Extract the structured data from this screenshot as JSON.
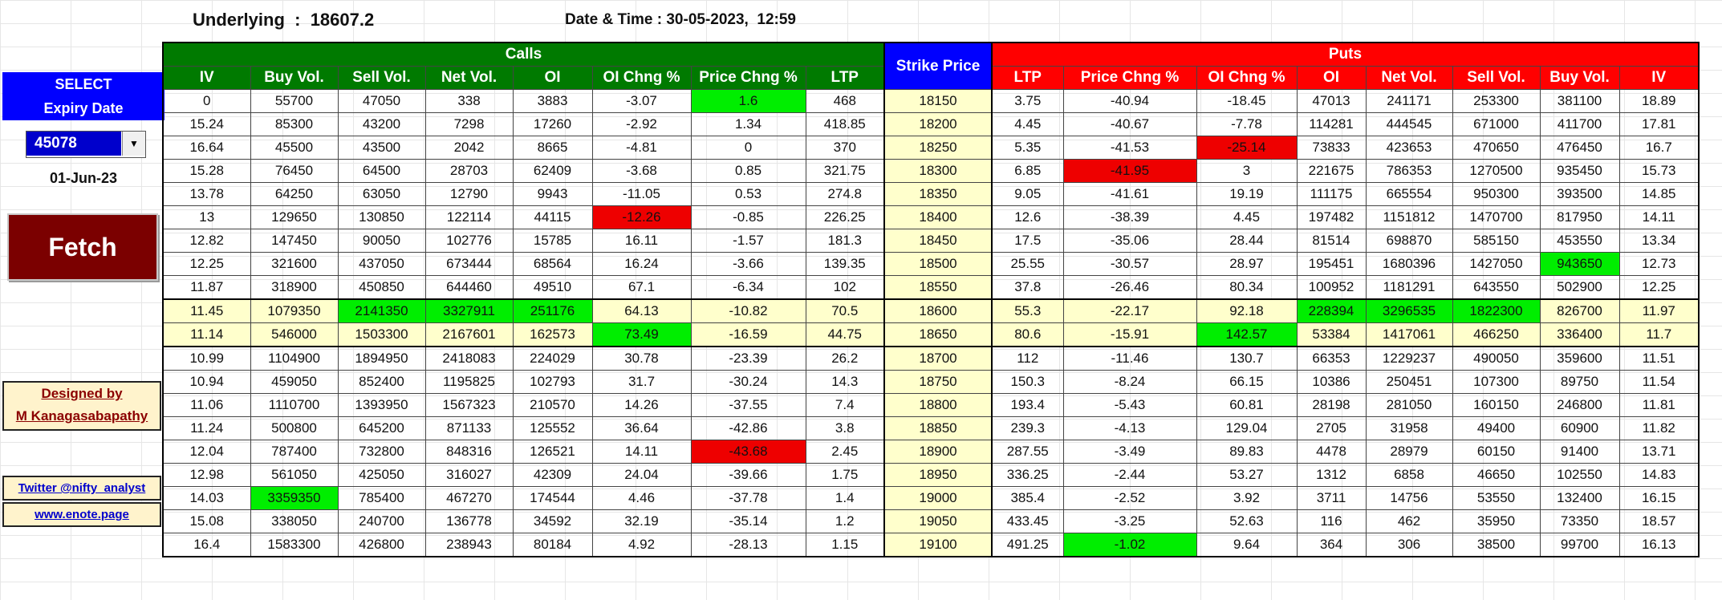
{
  "header": {
    "underlying_label": "Underlying  :",
    "underlying_value": "18607.2",
    "datetime_label": "Date & Time :",
    "datetime_value": "30-05-2023,  12:59"
  },
  "left_panel": {
    "select_line1": "SELECT",
    "select_line2": "Expiry Date",
    "expiry_value": "45078",
    "expiry_date": "01-Jun-23",
    "fetch_label": "Fetch",
    "designed_by": "Designed by",
    "author": "M Kanagasabapathy",
    "twitter": "Twitter @nifty_analyst",
    "website": "www.enote.page"
  },
  "colors": {
    "calls_header": "#007a00",
    "puts_header": "#ff0000",
    "strike_header": "#0000ff",
    "highlight_green": "#00ee00",
    "highlight_red": "#ee0000",
    "atm_row": "#ffffcc"
  },
  "table": {
    "calls_title": "Calls",
    "puts_title": "Puts",
    "strike_title": "Strike Price",
    "call_columns": [
      "IV",
      "Buy Vol.",
      "Sell Vol.",
      "Net Vol.",
      "OI",
      "OI Chng %",
      "Price Chng %",
      "LTP"
    ],
    "put_columns": [
      "LTP",
      "Price Chng %",
      "OI Chng %",
      "OI",
      "Net Vol.",
      "Sell Vol.",
      "Buy Vol.",
      "IV"
    ],
    "rows": [
      {
        "calls": [
          "0",
          "55700",
          "47050",
          "338",
          "3883",
          "-3.07",
          "1.6",
          "468"
        ],
        "strike": "18150",
        "puts": [
          "3.75",
          "-40.94",
          "-18.45",
          "47013",
          "241171",
          "253300",
          "381100",
          "18.89"
        ]
      },
      {
        "calls": [
          "15.24",
          "85300",
          "43200",
          "7298",
          "17260",
          "-2.92",
          "1.34",
          "418.85"
        ],
        "strike": "18200",
        "puts": [
          "4.45",
          "-40.67",
          "-7.78",
          "114281",
          "444545",
          "671000",
          "411700",
          "17.81"
        ]
      },
      {
        "calls": [
          "16.64",
          "45500",
          "43500",
          "2042",
          "8665",
          "-4.81",
          "0",
          "370"
        ],
        "strike": "18250",
        "puts": [
          "5.35",
          "-41.53",
          "-25.14",
          "73833",
          "423653",
          "470650",
          "476450",
          "16.7"
        ]
      },
      {
        "calls": [
          "15.28",
          "76450",
          "64500",
          "28703",
          "62409",
          "-3.68",
          "0.85",
          "321.75"
        ],
        "strike": "18300",
        "puts": [
          "6.85",
          "-41.95",
          "3",
          "221675",
          "786353",
          "1270500",
          "935450",
          "15.73"
        ]
      },
      {
        "calls": [
          "13.78",
          "64250",
          "63050",
          "12790",
          "9943",
          "-11.05",
          "0.53",
          "274.8"
        ],
        "strike": "18350",
        "puts": [
          "9.05",
          "-41.61",
          "19.19",
          "111175",
          "665554",
          "950300",
          "393500",
          "14.85"
        ]
      },
      {
        "calls": [
          "13",
          "129650",
          "130850",
          "122114",
          "44115",
          "-12.26",
          "-0.85",
          "226.25"
        ],
        "strike": "18400",
        "puts": [
          "12.6",
          "-38.39",
          "4.45",
          "197482",
          "1151812",
          "1470700",
          "817950",
          "14.11"
        ]
      },
      {
        "calls": [
          "12.82",
          "147450",
          "90050",
          "102776",
          "15785",
          "16.11",
          "-1.57",
          "181.3"
        ],
        "strike": "18450",
        "puts": [
          "17.5",
          "-35.06",
          "28.44",
          "81514",
          "698870",
          "585150",
          "453550",
          "13.34"
        ]
      },
      {
        "calls": [
          "12.25",
          "321600",
          "437050",
          "673444",
          "68564",
          "16.24",
          "-3.66",
          "139.35"
        ],
        "strike": "18500",
        "puts": [
          "25.55",
          "-30.57",
          "28.97",
          "195451",
          "1680396",
          "1427050",
          "943650",
          "12.73"
        ]
      },
      {
        "calls": [
          "11.87",
          "318900",
          "450850",
          "644460",
          "49510",
          "67.1",
          "-6.34",
          "102"
        ],
        "strike": "18550",
        "puts": [
          "37.8",
          "-26.46",
          "80.34",
          "100952",
          "1181291",
          "643550",
          "502900",
          "12.25"
        ]
      },
      {
        "calls": [
          "11.45",
          "1079350",
          "2141350",
          "3327911",
          "251176",
          "64.13",
          "-10.82",
          "70.5"
        ],
        "strike": "18600",
        "puts": [
          "55.3",
          "-22.17",
          "92.18",
          "228394",
          "3296535",
          "1822300",
          "826700",
          "11.97"
        ]
      },
      {
        "calls": [
          "11.14",
          "546000",
          "1503300",
          "2167601",
          "162573",
          "73.49",
          "-16.59",
          "44.75"
        ],
        "strike": "18650",
        "puts": [
          "80.6",
          "-15.91",
          "142.57",
          "53384",
          "1417061",
          "466250",
          "336400",
          "11.7"
        ]
      },
      {
        "calls": [
          "10.99",
          "1104900",
          "1894950",
          "2418083",
          "224029",
          "30.78",
          "-23.39",
          "26.2"
        ],
        "strike": "18700",
        "puts": [
          "112",
          "-11.46",
          "130.7",
          "66353",
          "1229237",
          "490050",
          "359600",
          "11.51"
        ]
      },
      {
        "calls": [
          "10.94",
          "459050",
          "852400",
          "1195825",
          "102793",
          "31.7",
          "-30.24",
          "14.3"
        ],
        "strike": "18750",
        "puts": [
          "150.3",
          "-8.24",
          "66.15",
          "10386",
          "250451",
          "107300",
          "89750",
          "11.54"
        ]
      },
      {
        "calls": [
          "11.06",
          "1110700",
          "1393950",
          "1567323",
          "210570",
          "14.26",
          "-37.55",
          "7.4"
        ],
        "strike": "18800",
        "puts": [
          "193.4",
          "-5.43",
          "60.81",
          "28198",
          "281050",
          "160150",
          "246800",
          "11.81"
        ]
      },
      {
        "calls": [
          "11.24",
          "500800",
          "645200",
          "871133",
          "125552",
          "36.64",
          "-42.86",
          "3.8"
        ],
        "strike": "18850",
        "puts": [
          "239.3",
          "-4.13",
          "129.04",
          "2705",
          "31958",
          "49400",
          "60900",
          "11.82"
        ]
      },
      {
        "calls": [
          "12.04",
          "787400",
          "732800",
          "848316",
          "126521",
          "14.11",
          "-43.68",
          "2.45"
        ],
        "strike": "18900",
        "puts": [
          "287.55",
          "-3.49",
          "89.83",
          "4478",
          "28979",
          "60150",
          "91400",
          "13.71"
        ]
      },
      {
        "calls": [
          "12.98",
          "561050",
          "425050",
          "316027",
          "42309",
          "24.04",
          "-39.66",
          "1.75"
        ],
        "strike": "18950",
        "puts": [
          "336.25",
          "-2.44",
          "53.27",
          "1312",
          "6858",
          "46650",
          "102550",
          "14.83"
        ]
      },
      {
        "calls": [
          "14.03",
          "3359350",
          "785400",
          "467270",
          "174544",
          "4.46",
          "-37.78",
          "1.4"
        ],
        "strike": "19000",
        "puts": [
          "385.4",
          "-2.52",
          "3.92",
          "3711",
          "14756",
          "53550",
          "132400",
          "16.15"
        ]
      },
      {
        "calls": [
          "15.08",
          "338050",
          "240700",
          "136778",
          "34592",
          "32.19",
          "-35.14",
          "1.2"
        ],
        "strike": "19050",
        "puts": [
          "433.45",
          "-3.25",
          "52.63",
          "116",
          "462",
          "35950",
          "73350",
          "18.57"
        ]
      },
      {
        "calls": [
          "16.4",
          "1583300",
          "426800",
          "238943",
          "80184",
          "4.92",
          "-28.13",
          "1.15"
        ],
        "strike": "19100",
        "puts": [
          "491.25",
          "-1.02",
          "9.64",
          "364",
          "306",
          "38500",
          "99700",
          "16.13"
        ]
      }
    ]
  }
}
